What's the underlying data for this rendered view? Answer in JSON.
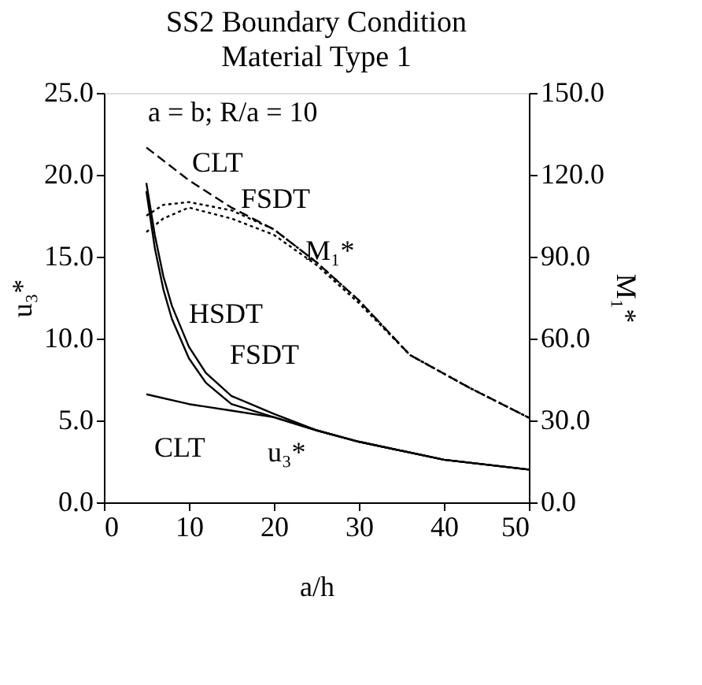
{
  "chart_data": {
    "type": "line",
    "title": "SS2 Boundary Condition",
    "subtitle": "Material Type 1",
    "xlabel": "a/h",
    "ylabel": "u₃*",
    "y2label": "M₁*",
    "xlim": [
      0,
      50
    ],
    "xticks": [
      0,
      10,
      20,
      30,
      40,
      50
    ],
    "ylim": [
      0,
      25
    ],
    "yticks": [
      {
        "value": 0,
        "label": "0.0"
      },
      {
        "value": 5,
        "label": "5.0"
      },
      {
        "value": 10,
        "label": "10.0"
      },
      {
        "value": 15,
        "label": "15.0"
      },
      {
        "value": 20,
        "label": "20.0"
      },
      {
        "value": 25,
        "label": "25.0"
      }
    ],
    "y2lim": [
      0,
      150
    ],
    "y2ticks": [
      {
        "value": 0,
        "label": "0.0"
      },
      {
        "value": 30,
        "label": "30.0"
      },
      {
        "value": 60,
        "label": "60.0"
      },
      {
        "value": 90,
        "label": "90.0"
      },
      {
        "value": 120,
        "label": "120.0"
      },
      {
        "value": 150,
        "label": "150.0"
      }
    ],
    "grid": false,
    "series": [
      {
        "color": "#000000",
        "line_style": "solid",
        "x": [
          5,
          10,
          15,
          20,
          25,
          30,
          40,
          50
        ],
        "values": [
          6.6,
          6.0,
          5.6,
          5.2,
          4.4,
          3.7,
          2.6,
          2.0
        ]
      },
      {
        "color": "#000000",
        "line_style": "solid",
        "x": [
          5,
          6,
          7,
          8,
          10,
          12,
          15,
          20,
          25,
          30,
          40,
          50
        ],
        "values": [
          19.0,
          15.5,
          13.0,
          11.2,
          8.8,
          7.3,
          6.0,
          5.2,
          4.4,
          3.7,
          2.6,
          2.0
        ]
      },
      {
        "color": "#000000",
        "line_style": "solid",
        "x": [
          5,
          6,
          7,
          8,
          10,
          12,
          15,
          20,
          25,
          30,
          40,
          50
        ],
        "values": [
          19.5,
          16.3,
          13.8,
          12.0,
          9.5,
          7.9,
          6.5,
          5.4,
          4.4,
          3.7,
          2.6,
          2.0
        ]
      },
      {
        "color": "#000000",
        "line_style": "dashed",
        "axis": "y2",
        "x": [
          5,
          10,
          15,
          20,
          25,
          30,
          36,
          43,
          50
        ],
        "values": [
          130,
          118,
          108,
          100,
          88,
          74,
          54,
          42,
          31
        ]
      },
      {
        "color": "#000000",
        "line_style": "dotted",
        "axis": "y2",
        "x": [
          5,
          7,
          10,
          15,
          20,
          25,
          30,
          36,
          43,
          50
        ],
        "values": [
          105,
          109,
          110,
          107,
          100,
          88,
          74,
          54,
          42,
          31
        ]
      },
      {
        "color": "#000000",
        "line_style": "dotted",
        "axis": "y2",
        "x": [
          5,
          7,
          10,
          15,
          20,
          25,
          30,
          36,
          43,
          50
        ],
        "values": [
          99,
          104,
          108,
          104,
          98,
          87,
          73,
          54,
          42,
          31
        ]
      }
    ],
    "annotations": [
      "a = b;  R/a = 10",
      "CLT",
      "FSDT",
      "M₁*",
      "HSDT",
      "FSDT",
      "CLT",
      "u₃*"
    ]
  }
}
